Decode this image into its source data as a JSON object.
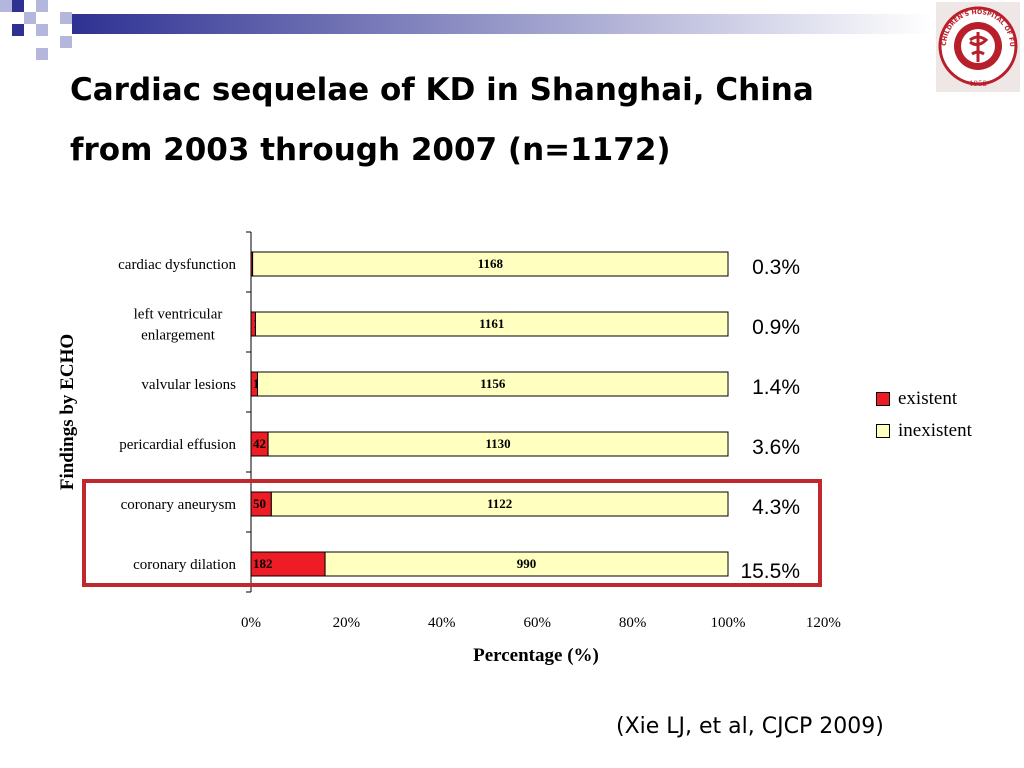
{
  "slide": {
    "title_line1": "Cardiac sequelae of KD in Shanghai, China",
    "title_line2": "from 2003 through 2007 (n=1172)",
    "citation": "(Xie LJ, et al, CJCP 2009)",
    "logo_text": "CHILDREN'S HOSPITAL OF FUDAN UNIVERSITY",
    "logo_year": "1952",
    "colors": {
      "deco_blue": "#2e3192",
      "deco_light": "#b4b6dc",
      "highlight_box": "#c0282d",
      "logo_red": "#b81f2a"
    }
  },
  "chart_data": {
    "type": "bar",
    "orientation": "horizontal",
    "stacked": "percent",
    "categories": [
      "cardiac dysfunction",
      "left ventricular enlargement",
      "valvular lesions",
      "pericardial effusion",
      "coronary aneurysm",
      "coronary dilation"
    ],
    "category_lines": [
      [
        "cardiac dysfunction"
      ],
      [
        "left ventricular",
        "enlargement"
      ],
      [
        "valvular lesions"
      ],
      [
        "pericardial effusion"
      ],
      [
        "coronary aneurysm"
      ],
      [
        "coronary dilation"
      ]
    ],
    "series": [
      {
        "name": "existent",
        "color": "#ee1c24",
        "values": [
          4,
          11,
          16,
          42,
          50,
          182
        ]
      },
      {
        "name": "inexistent",
        "color": "#ffffc0",
        "values": [
          1168,
          1161,
          1156,
          1130,
          1122,
          990
        ]
      }
    ],
    "percent_labels": [
      "0.3%",
      "0.9%",
      "1.4%",
      "3.6%",
      "4.3%",
      "15.5%"
    ],
    "xlabel": "Percentage (%)",
    "ylabel": "Findings by ECHO",
    "xlim": [
      0,
      120
    ],
    "x_ticks": [
      "0%",
      "20%",
      "40%",
      "60%",
      "80%",
      "100%",
      "120%"
    ],
    "grid": false,
    "legend_position": "right",
    "highlighted_categories": [
      "coronary aneurysm",
      "coronary dilation"
    ]
  }
}
